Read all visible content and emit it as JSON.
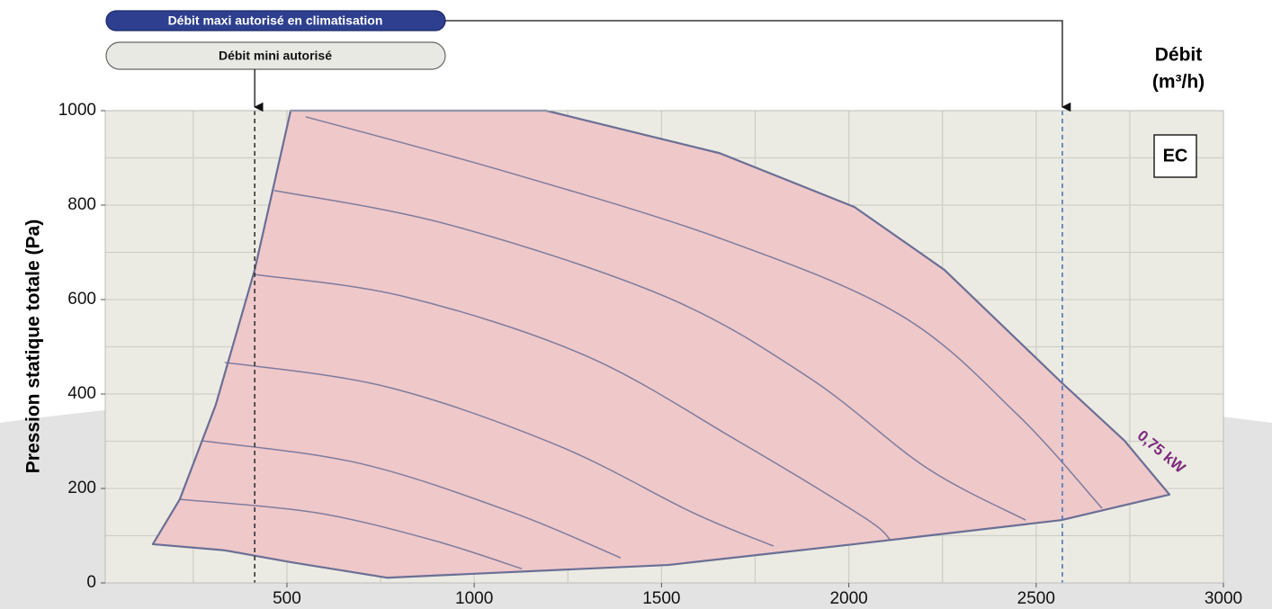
{
  "chart_data": {
    "type": "fan-envelope",
    "ylabel": "Pression statique totale (Pa)",
    "xlabel": [
      "Débit",
      "(m³/h)"
    ],
    "badge": "EC",
    "annotation": "0,75 kW",
    "xlim": [
      15,
      3000
    ],
    "ylim": [
      0,
      1000
    ],
    "xticks": [
      500,
      1000,
      1500,
      2000,
      2500,
      3000
    ],
    "yticks": [
      0,
      200,
      400,
      600,
      800,
      1000
    ],
    "xgrid": [
      250,
      500,
      750,
      1000,
      1250,
      1500,
      1750,
      2000,
      2250,
      2500,
      2750
    ],
    "ygrid": [
      100,
      200,
      300,
      400,
      500,
      600,
      700,
      800,
      900
    ],
    "grid": true,
    "fill_color": "#efc8ca",
    "line_color": "#6a6f95",
    "envelope": {
      "x": [
        142,
        214,
        310,
        414,
        510,
        1192,
        1655,
        2015,
        2255,
        2567,
        2736,
        2856,
        2567,
        2015,
        1518,
        767,
        510,
        334
      ],
      "y": [
        82,
        177,
        377,
        663,
        1000,
        1000,
        910,
        796,
        663,
        425,
        301,
        187,
        133,
        82,
        38,
        11,
        44,
        69
      ]
    },
    "curves": [
      {
        "x": [
          550,
          1079,
          1655,
          2136,
          2448,
          2676
        ],
        "y": [
          987,
          872,
          730,
          568,
          358,
          158
        ]
      },
      {
        "x": [
          466,
          935,
          1511,
          1895,
          2207,
          2472
        ],
        "y": [
          831,
          758,
          606,
          434,
          244,
          133
        ]
      },
      {
        "x": [
          414,
          815,
          1295,
          1703,
          2040,
          2111
        ],
        "y": [
          653,
          606,
          482,
          301,
          139,
          91
        ]
      },
      {
        "x": [
          334,
          767,
          1223,
          1583,
          1799
        ],
        "y": [
          467,
          415,
          291,
          149,
          78
        ]
      },
      {
        "x": [
          274,
          695,
          1103,
          1391
        ],
        "y": [
          301,
          253,
          149,
          53
        ]
      },
      {
        "x": [
          214,
          575,
          887,
          1127
        ],
        "y": [
          177,
          149,
          91,
          30
        ]
      }
    ],
    "limits": [
      {
        "label": "Débit mini autorisé",
        "x": 414,
        "style": "light"
      },
      {
        "label": "Débit maxi autorisé en climatisation",
        "x": 2570,
        "style": "dark"
      }
    ]
  }
}
